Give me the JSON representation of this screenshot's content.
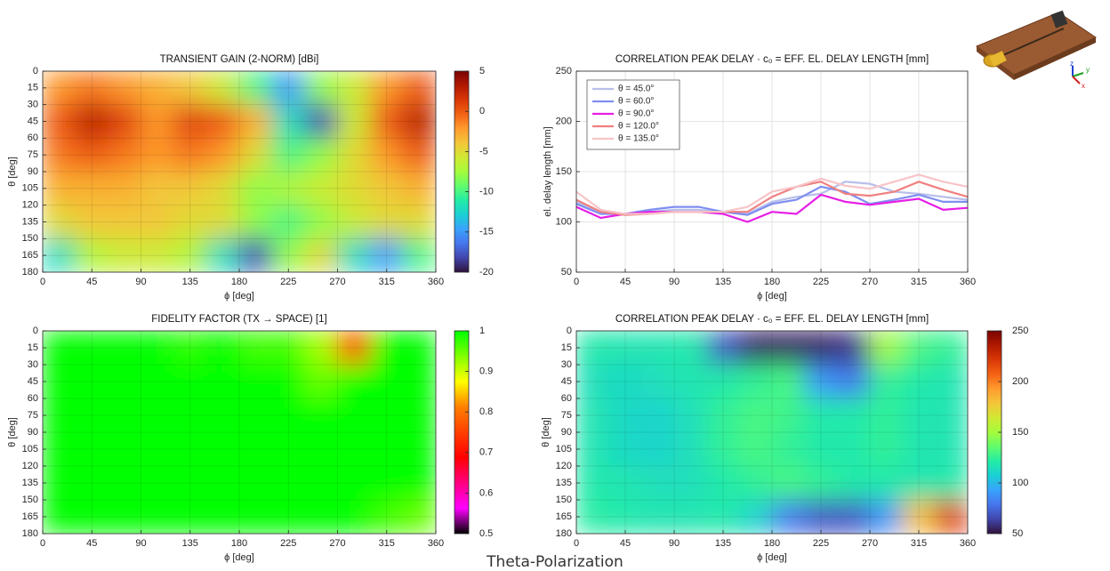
{
  "chart_data": [
    {
      "type": "heatmap",
      "title": "TRANSIENT GAIN (2-NORM) [dBi]",
      "xlabel": "ϕ [deg]",
      "ylabel": "θ [deg]",
      "x": [
        15,
        45,
        75,
        105,
        135,
        165,
        195,
        225,
        255,
        285,
        315,
        345
      ],
      "y": [
        15,
        45,
        75,
        105,
        135,
        165
      ],
      "values": [
        [
          -2,
          -1,
          -2,
          -3,
          -4,
          -6,
          -10,
          -15,
          -8,
          -6,
          -2,
          0
        ],
        [
          0,
          3,
          1,
          -2,
          1,
          0,
          -3,
          -12,
          -18,
          -6,
          0,
          3
        ],
        [
          -1,
          0,
          -1,
          -2,
          -1,
          -2,
          -5,
          -10,
          -8,
          -5,
          -2,
          0
        ],
        [
          -3,
          -3,
          -3,
          -4,
          -4,
          -5,
          -8,
          -7,
          -6,
          -5,
          -4,
          -3
        ],
        [
          -5,
          -4,
          -4,
          -4,
          -5,
          -5,
          -8,
          -10,
          -8,
          -6,
          -5,
          -5
        ],
        [
          -12,
          -7,
          -6,
          -6,
          -7,
          -12,
          -18,
          -8,
          -5,
          -12,
          -15,
          -10
        ]
      ],
      "xlim": [
        0,
        360
      ],
      "xticks": [
        0,
        45,
        90,
        135,
        180,
        225,
        270,
        315,
        360
      ],
      "ylim": [
        0,
        180
      ],
      "yticks": [
        0,
        15,
        30,
        45,
        60,
        75,
        90,
        105,
        120,
        135,
        150,
        165,
        180
      ],
      "y_reversed": true,
      "zlim": [
        -20,
        5
      ],
      "zticks": [
        5,
        0,
        -5,
        -10,
        -15,
        -20
      ],
      "colormap": [
        "#30123b",
        "#4145ab",
        "#4675ed",
        "#39a2fc",
        "#1bcfd4",
        "#24eca6",
        "#61fc6c",
        "#a4fc3b",
        "#d1e834",
        "#f3c63a",
        "#fe9b2d",
        "#f36315",
        "#d93806",
        "#b11901",
        "#7a0403"
      ],
      "grid": true
    },
    {
      "type": "line",
      "title": "CORRELATION PEAK DELAY · c₀ = EFF. EL. DELAY LENGTH [mm]",
      "xlabel": "ϕ [deg]",
      "ylabel": "el. delay length [mm]",
      "x": [
        0,
        22.5,
        45,
        67.5,
        90,
        112.5,
        135,
        157.5,
        180,
        202.5,
        225,
        247.5,
        270,
        292.5,
        315,
        337.5,
        360
      ],
      "series": [
        {
          "name": "θ = 45.0°",
          "color": "#b8bfea",
          "values": [
            120,
            110,
            108,
            110,
            112,
            112,
            110,
            108,
            120,
            125,
            128,
            140,
            138,
            130,
            128,
            125,
            122
          ]
        },
        {
          "name": "θ = 60.0°",
          "color": "#7f8ef0",
          "values": [
            118,
            108,
            108,
            112,
            115,
            115,
            110,
            107,
            118,
            122,
            135,
            130,
            118,
            122,
            127,
            120,
            120
          ]
        },
        {
          "name": "θ = 90.0°",
          "color": "#e61ee6",
          "values": [
            115,
            104,
            108,
            110,
            110,
            110,
            108,
            100,
            110,
            108,
            127,
            120,
            117,
            120,
            123,
            112,
            114
          ]
        },
        {
          "name": "θ = 120.0°",
          "color": "#f08080",
          "values": [
            122,
            110,
            107,
            108,
            110,
            110,
            110,
            110,
            125,
            135,
            140,
            128,
            126,
            130,
            140,
            132,
            125
          ]
        },
        {
          "name": "θ = 135.0°",
          "color": "#f7c4c8",
          "values": [
            130,
            112,
            108,
            108,
            110,
            110,
            110,
            115,
            130,
            135,
            143,
            136,
            133,
            140,
            147,
            140,
            135
          ]
        }
      ],
      "xlim": [
        0,
        360
      ],
      "xticks": [
        0,
        45,
        90,
        135,
        180,
        225,
        270,
        315,
        360
      ],
      "ylim": [
        50,
        250
      ],
      "yticks": [
        50,
        100,
        150,
        200,
        250
      ],
      "grid": true,
      "legend": "upper-left"
    },
    {
      "type": "heatmap",
      "title": "FIDELITY FACTOR (TX → SPACE) [1]",
      "xlabel": "ϕ [deg]",
      "ylabel": "θ [deg]",
      "x": [
        15,
        45,
        75,
        105,
        135,
        165,
        195,
        225,
        255,
        285,
        315,
        345
      ],
      "y": [
        15,
        45,
        75,
        105,
        135,
        165
      ],
      "values": [
        [
          1,
          1,
          1,
          1,
          0.98,
          1,
          0.97,
          0.97,
          0.92,
          0.75,
          1,
          1
        ],
        [
          1,
          1,
          1,
          1,
          1,
          1,
          1,
          1,
          0.95,
          1,
          1,
          1
        ],
        [
          1,
          1,
          1,
          1,
          1,
          1,
          1,
          1,
          1,
          1,
          1,
          1
        ],
        [
          1,
          1,
          1,
          1,
          1,
          1,
          1,
          1,
          1,
          1,
          1,
          1
        ],
        [
          1,
          1,
          1,
          1,
          1,
          1,
          1,
          1,
          1,
          1,
          1,
          1
        ],
        [
          1,
          1,
          1,
          1,
          1,
          1,
          1,
          1,
          1,
          1,
          0.97,
          0.95
        ]
      ],
      "xlim": [
        0,
        360
      ],
      "xticks": [
        0,
        45,
        90,
        135,
        180,
        225,
        270,
        315,
        360
      ],
      "ylim": [
        0,
        180
      ],
      "yticks": [
        0,
        15,
        30,
        45,
        60,
        75,
        90,
        105,
        120,
        135,
        150,
        165,
        180
      ],
      "y_reversed": true,
      "zlim": [
        0.5,
        1
      ],
      "zticks": [
        1,
        0.9,
        0.8,
        0.7,
        0.6,
        0.5
      ],
      "colormap": [
        "#000000",
        "#ff00ff",
        "#ff0080",
        "#ff0000",
        "#ff4000",
        "#ff8000",
        "#ffff00",
        "#80ff00",
        "#00ff00"
      ],
      "grid": true
    },
    {
      "type": "heatmap",
      "title": "CORRELATION PEAK DELAY · c₀ = EFF. EL. DELAY LENGTH [mm]",
      "xlabel": "ϕ [deg]",
      "ylabel": "θ [deg]",
      "x": [
        15,
        45,
        75,
        105,
        135,
        165,
        195,
        225,
        255,
        285,
        315,
        345
      ],
      "y": [
        15,
        45,
        75,
        105,
        135,
        165
      ],
      "values": [
        [
          120,
          118,
          118,
          120,
          70,
          55,
          55,
          55,
          60,
          150,
          130,
          125
        ],
        [
          115,
          112,
          115,
          118,
          120,
          125,
          130,
          90,
          80,
          125,
          120,
          118
        ],
        [
          118,
          112,
          110,
          115,
          125,
          130,
          128,
          120,
          120,
          125,
          118,
          118
        ],
        [
          118,
          112,
          110,
          115,
          125,
          130,
          125,
          120,
          120,
          125,
          118,
          118
        ],
        [
          120,
          118,
          115,
          115,
          120,
          125,
          130,
          125,
          120,
          120,
          118,
          120
        ],
        [
          122,
          120,
          118,
          118,
          120,
          110,
          80,
          70,
          70,
          90,
          180,
          220
        ]
      ],
      "xlim": [
        0,
        360
      ],
      "xticks": [
        0,
        45,
        90,
        135,
        180,
        225,
        270,
        315,
        360
      ],
      "ylim": [
        0,
        180
      ],
      "yticks": [
        0,
        15,
        30,
        45,
        60,
        75,
        90,
        105,
        120,
        135,
        150,
        165,
        180
      ],
      "y_reversed": true,
      "zlim": [
        50,
        250
      ],
      "zticks": [
        250,
        200,
        150,
        100,
        50
      ],
      "colormap": [
        "#30123b",
        "#4145ab",
        "#4675ed",
        "#39a2fc",
        "#1bcfd4",
        "#24eca6",
        "#61fc6c",
        "#a4fc3b",
        "#d1e834",
        "#f3c63a",
        "#fe9b2d",
        "#f36315",
        "#d93806",
        "#b11901",
        "#7a0403"
      ],
      "grid": true
    }
  ],
  "caption": "Theta-Polarization",
  "inset_axes": [
    "z",
    "y",
    "x"
  ]
}
